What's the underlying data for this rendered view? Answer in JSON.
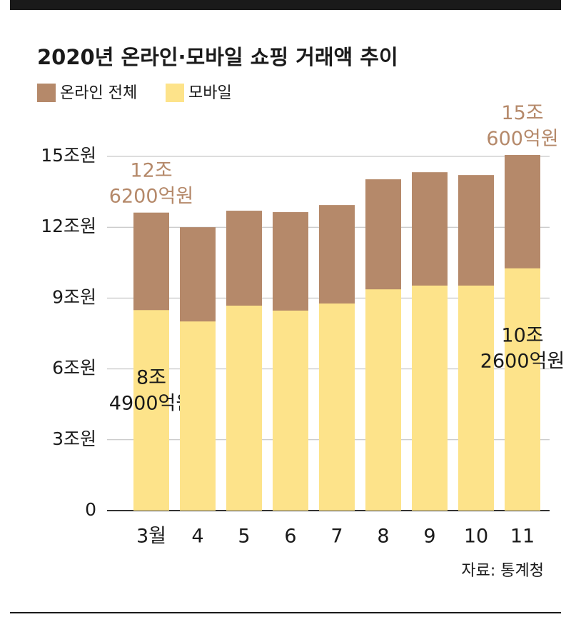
{
  "chart_data": {
    "type": "bar",
    "overlap": true,
    "title": "2020년 온라인·모바일 쇼핑 거래액 추이",
    "source": "자료: 통계청",
    "categories": [
      "3월",
      "4",
      "5",
      "6",
      "7",
      "8",
      "9",
      "10",
      "11"
    ],
    "series": [
      {
        "name": "온라인 전체",
        "color": "#b5896a",
        "label_color": "#b5896a",
        "values": [
          12.62,
          12.0,
          12.7,
          12.64,
          12.94,
          14.03,
          14.33,
          14.21,
          15.06
        ],
        "value_labels": [
          "12조 6200억원",
          null,
          null,
          null,
          null,
          null,
          null,
          null,
          "15조 600억원"
        ]
      },
      {
        "name": "모바일",
        "color": "#fde38a",
        "label_color": "#1a1a1a",
        "values": [
          8.49,
          8.01,
          8.68,
          8.47,
          8.77,
          9.37,
          9.53,
          9.53,
          10.26
        ],
        "value_labels": [
          "8조 4900억원",
          null,
          null,
          null,
          null,
          null,
          null,
          null,
          "10조 2600억원"
        ]
      }
    ],
    "ylim": [
      0,
      15
    ],
    "yticks": [
      0,
      {
        "value": 3,
        "label": "3조원"
      },
      {
        "value": 6,
        "label": "6조원"
      },
      {
        "value": 9,
        "label": "9조원"
      },
      {
        "value": 12,
        "label": "12조원"
      },
      {
        "value": 15,
        "label": "15조원"
      }
    ],
    "grid": true
  }
}
